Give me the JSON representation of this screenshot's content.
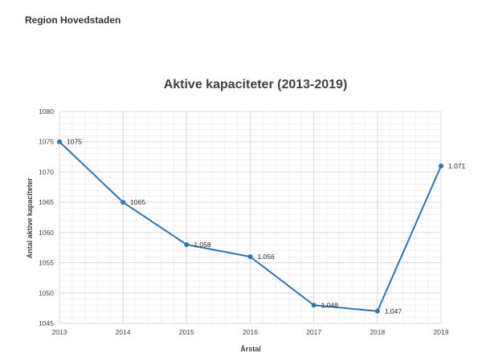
{
  "page": {
    "region_title": "Region Hovedstaden"
  },
  "chart_data": {
    "type": "line",
    "title": "Aktive kapaciteter (2013-2019)",
    "xlabel": "Årstal",
    "ylabel": "Antal aktive kapaciteter",
    "x": [
      "2013",
      "2014",
      "2015",
      "2016",
      "2017",
      "2018",
      "2019"
    ],
    "series": [
      {
        "values": [
          1075,
          1065,
          1058,
          1056,
          1048,
          1047,
          1071
        ],
        "labels": [
          "1075",
          "1065",
          "1.058",
          "1.056",
          "1.048",
          "1.047",
          "1.071"
        ],
        "color": "#2e75b6"
      }
    ],
    "ylim": [
      1045,
      1080
    ],
    "yticks": [
      "1045",
      "1050",
      "1055",
      "1060",
      "1065",
      "1070",
      "1075",
      "1080"
    ],
    "grid": true,
    "legend": "none"
  }
}
